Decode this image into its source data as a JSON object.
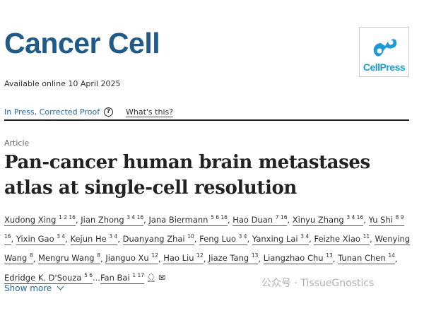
{
  "journal": {
    "title": "Cancer Cell",
    "publisher_logo_text": "CellPress",
    "brand_color": "#1f5a88",
    "logo_color": "#1d9ad6"
  },
  "available": "Available online 10 April 2025",
  "status": {
    "label": "In Press, Corrected Proof",
    "help_icon": "question-circle-icon",
    "whats_this": "What's this?"
  },
  "article": {
    "type": "Article",
    "title": "Pan-cancer human brain metastases atlas at single-cell resolution",
    "authors": [
      {
        "name": "Xudong Xing",
        "affil": "1 2 16"
      },
      {
        "name": "Jian Zhong",
        "affil": "3 4 16"
      },
      {
        "name": "Jana Biermann",
        "affil": "5 6 16"
      },
      {
        "name": "Hao Duan",
        "affil": "7 16"
      },
      {
        "name": "Xinyu Zhang",
        "affil": "3 4 16"
      },
      {
        "name": "Yu Shi",
        "affil": "8 9 16"
      },
      {
        "name": "Yixin Gao",
        "affil": "3 4"
      },
      {
        "name": "Kejun He",
        "affil": "3 4"
      },
      {
        "name": "Duanyang Zhai",
        "affil": "10"
      },
      {
        "name": "Feng Luo",
        "affil": "3 4"
      },
      {
        "name": "Yanxing Lai",
        "affil": "3 4"
      },
      {
        "name": "Feizhe Xiao",
        "affil": "11"
      },
      {
        "name": "Wenying Wang",
        "affil": "8"
      },
      {
        "name": "Mengru Wang",
        "affil": "8"
      },
      {
        "name": "Jianguo Xu",
        "affil": "12"
      },
      {
        "name": "Hao Liu",
        "affil": "12"
      },
      {
        "name": "Jiaze Tang",
        "affil": "13"
      },
      {
        "name": "Liangzhao Chu",
        "affil": "13"
      },
      {
        "name": "Tunan Chen",
        "affil": "14"
      },
      {
        "name": "Edridge K. D'Souza",
        "affil": "5 6"
      },
      {
        "name": "Fan Bai",
        "affil": "1 17"
      }
    ],
    "ellipsis": "...",
    "icons": [
      "person-icon",
      "envelope-icon"
    ],
    "show_more": "Show more"
  },
  "watermark": "公众号 · TissueGnostics"
}
